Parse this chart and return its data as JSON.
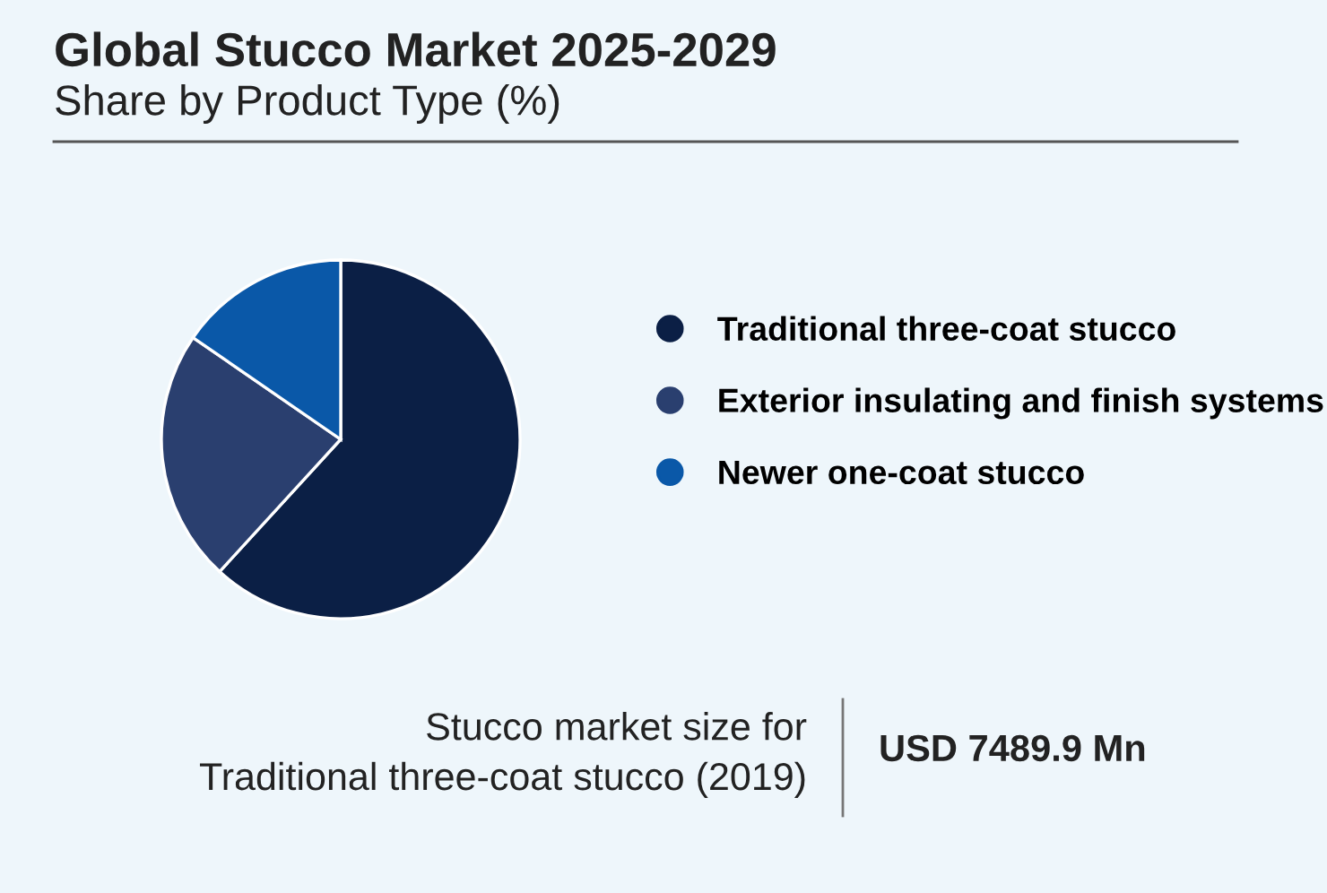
{
  "chart_data": {
    "type": "pie",
    "title": "Global Stucco Market 2025-2029",
    "subtitle": "Share by Product Type (%)",
    "categories": [
      "Traditional three-coat stucco",
      "Exterior insulating and finish systems",
      "Newer one-coat stucco"
    ],
    "values": [
      61.8,
      22.8,
      15.4
    ],
    "colors": [
      "#0b1f45",
      "#2a3f6f",
      "#0a58a8"
    ],
    "legend": "right",
    "annotations": [
      "Stucco market size for\nTraditional three-coat stucco (2019)",
      "USD 7489.9 Mn"
    ]
  }
}
